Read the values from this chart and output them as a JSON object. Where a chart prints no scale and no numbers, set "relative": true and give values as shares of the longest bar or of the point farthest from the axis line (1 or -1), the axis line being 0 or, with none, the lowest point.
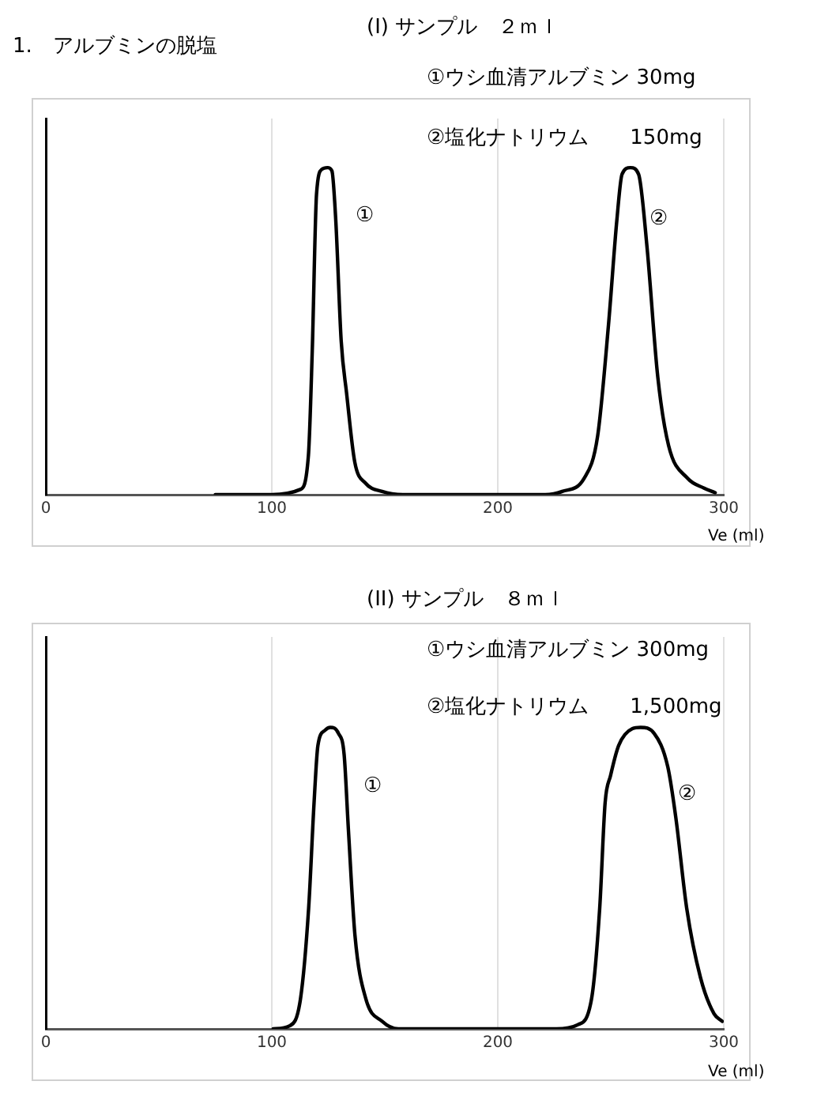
{
  "chart_data": [
    {
      "type": "line",
      "title": "(I) サンプル　２ｍｌ",
      "xlabel": "Ve (ml)",
      "relative": true,
      "xlim": [
        0,
        300
      ],
      "xticks": [
        0,
        100,
        200,
        300
      ],
      "grid": "x",
      "legend": false,
      "marker": "none",
      "line_style": "solid",
      "annotations": [
        "1.　アルブミンの脱塩",
        "①ウシ血清アルブミン 30mg",
        "②塩化ナトリウム　　150mg",
        "①",
        "②"
      ],
      "series": [
        {
          "color": "#000000",
          "x": [
            75,
            100,
            112.6,
            116.2,
            117.9,
            119.8,
            122.2,
            124.6,
            126.6,
            128.3,
            130.7,
            133.1,
            136.7,
            141.5,
            148.8,
            158.5,
            221,
            228.5,
            238.2,
            244.2,
            249,
            252.7,
            255,
            258.7,
            262.3,
            266,
            270.8,
            275.6,
            284,
            291.3,
            296.2
          ],
          "values": [
            0,
            0,
            0.016,
            0.12,
            0.44,
            0.92,
            0.995,
            1,
            0.99,
            0.84,
            0.47,
            0.31,
            0.1,
            0.035,
            0.01,
            0,
            0,
            0.01,
            0.05,
            0.18,
            0.52,
            0.84,
            0.98,
            1,
            0.98,
            0.76,
            0.36,
            0.15,
            0.05,
            0.02,
            0.006
          ]
        }
      ]
    },
    {
      "type": "line",
      "title": "(II) サンプル　８ｍｌ",
      "xlabel": "Ve (ml)",
      "relative": true,
      "xlim": [
        0,
        300
      ],
      "xticks": [
        0,
        100,
        200,
        300
      ],
      "grid": "x",
      "legend": false,
      "marker": "none",
      "line_style": "solid",
      "annotations": [
        "①ウシ血清アルブミン 300mg",
        "②塩化ナトリウム　　1,500mg",
        "①",
        "②"
      ],
      "series": [
        {
          "color": "#000000",
          "x": [
            100.6,
            107.9,
            112.7,
            116.3,
            118.7,
            120.4,
            123.5,
            125.9,
            129.5,
            132,
            133.9,
            136.8,
            141.6,
            148.8,
            156,
            225.9,
            235.5,
            241.5,
            245.1,
            247.5,
            249.9,
            253.5,
            259.6,
            263.2,
            269.2,
            275.2,
            278.8,
            283.6,
            289.7,
            295.7,
            299.3
          ],
          "values": [
            0,
            0.01,
            0.1,
            0.4,
            0.75,
            0.94,
            0.99,
            1,
            0.98,
            0.91,
            0.66,
            0.31,
            0.1,
            0.025,
            0,
            0,
            0.014,
            0.1,
            0.4,
            0.75,
            0.84,
            0.94,
            0.996,
            1,
            0.98,
            0.87,
            0.7,
            0.4,
            0.17,
            0.05,
            0.025
          ]
        }
      ]
    }
  ]
}
